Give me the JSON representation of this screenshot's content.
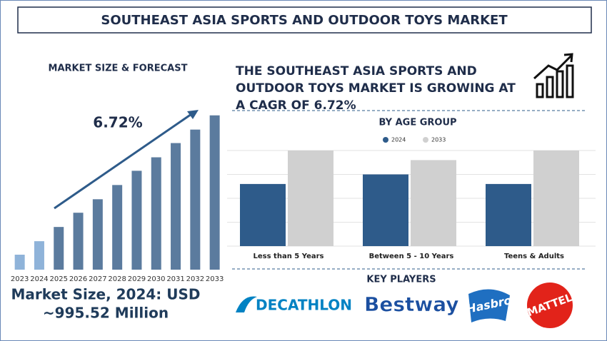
{
  "header": {
    "title": "SOUTHEAST ASIA SPORTS AND OUTDOOR TOYS MARKET"
  },
  "chart_data": [
    {
      "type": "bar",
      "title": "MARKET SIZE & FORECAST",
      "annotation": "6.72%",
      "categories": [
        "2023",
        "2024",
        "2025",
        "2026",
        "2027",
        "2028",
        "2029",
        "2030",
        "2031",
        "2032",
        "2033"
      ],
      "values": [
        20,
        38,
        57,
        76,
        94,
        113,
        132,
        150,
        169,
        187,
        206
      ],
      "colors": [
        "#8fb3d9",
        "#8fb3d9",
        "#5b7b9e",
        "#5b7b9e",
        "#5b7b9e",
        "#5b7b9e",
        "#5b7b9e",
        "#5b7b9e",
        "#5b7b9e",
        "#5b7b9e",
        "#5b7b9e"
      ],
      "ylim": [
        0,
        220
      ]
    },
    {
      "type": "grouped-bar",
      "title": "BY AGE GROUP",
      "categories": [
        "Less than 5 Years",
        "Between 5 - 10 Years",
        "Teens & Adults"
      ],
      "series": [
        {
          "name": "2024",
          "color": "#2e5b8a",
          "values": [
            2.6,
            3.0,
            2.6
          ]
        },
        {
          "name": "2033",
          "color": "#d0d0d0",
          "values": [
            4.0,
            3.6,
            4.0
          ]
        }
      ],
      "ylim": [
        0,
        4
      ],
      "yticks": [
        0,
        1,
        2,
        3,
        4
      ],
      "grid": true
    }
  ],
  "headline": [
    "THE SOUTHEAST ASIA SPORTS AND",
    "OUTDOOR TOYS MARKET IS GROWING AT",
    "A CAGR OF 6.72%"
  ],
  "market_size": [
    "Market Size, 2024: USD",
    "~995.52 Million"
  ],
  "key_players": {
    "title": "KEY PLAYERS",
    "logos": [
      "DECATHLON",
      "Bestway",
      "Hasbro",
      "MATTEL"
    ]
  }
}
